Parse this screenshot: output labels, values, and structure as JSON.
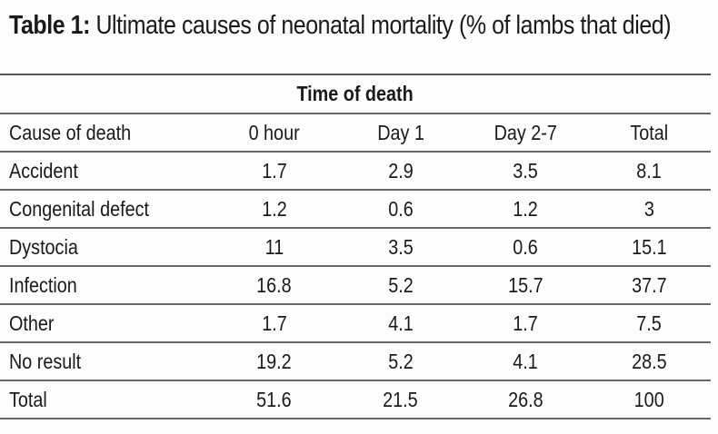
{
  "title": {
    "label": "Table 1:",
    "text": " Ultimate causes of neonatal mortality (% of lambs that died)"
  },
  "table": {
    "group_header": "Time of death",
    "columns": [
      "Cause of death",
      "0 hour",
      "Day 1",
      "Day 2-7",
      "Total"
    ],
    "rows": [
      [
        "Accident",
        "1.7",
        "2.9",
        "3.5",
        "8.1"
      ],
      [
        "Congenital defect",
        "1.2",
        "0.6",
        "1.2",
        "3"
      ],
      [
        "Dystocia",
        "11",
        "3.5",
        "0.6",
        "15.1"
      ],
      [
        "Infection",
        "16.8",
        "5.2",
        "15.7",
        "37.7"
      ],
      [
        "Other",
        "1.7",
        "4.1",
        "1.7",
        "7.5"
      ],
      [
        "No result",
        "19.2",
        "5.2",
        "4.1",
        "28.5"
      ],
      [
        "Total",
        "51.6",
        "21.5",
        "26.8",
        "100"
      ]
    ]
  }
}
